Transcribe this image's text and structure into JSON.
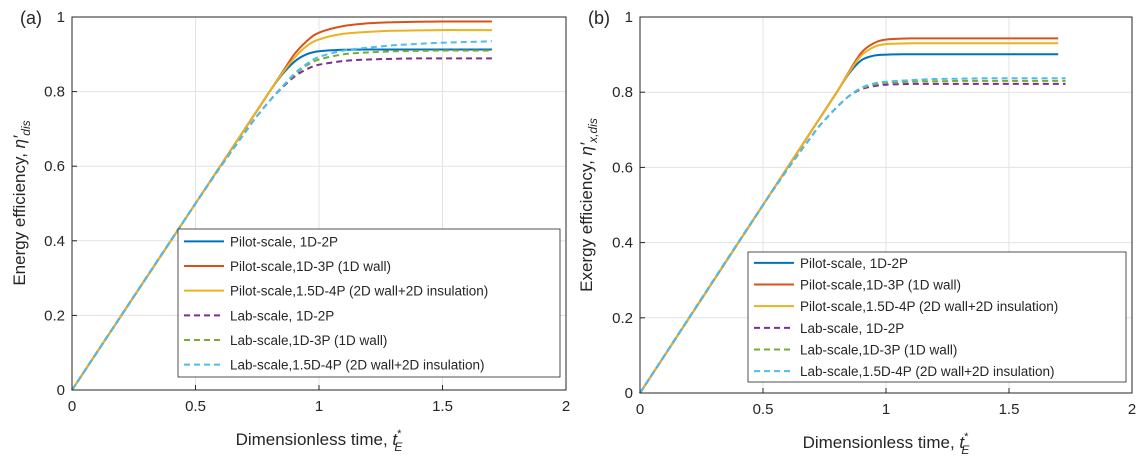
{
  "chart_data": [
    {
      "panel_label": "(a)",
      "type": "line",
      "xlabel": "Dimensionless time, ",
      "xlabel_sym": "t",
      "xlabel_sup": "*",
      "xlabel_sub": "E",
      "ylabel": "Energy efficiency, ",
      "ylabel_sym": "η′",
      "ylabel_sub": "dis",
      "xlim": [
        0,
        2
      ],
      "ylim": [
        0,
        1
      ],
      "xticks": [
        "0",
        "0.5",
        "1",
        "1.5",
        "2"
      ],
      "yticks": [
        "0",
        "0.2",
        "0.4",
        "0.6",
        "0.8",
        "1"
      ],
      "xtick_values": [
        0,
        0.5,
        1,
        1.5,
        2
      ],
      "ytick_values": [
        0,
        0.2,
        0.4,
        0.6,
        0.8,
        1
      ],
      "grid": true,
      "legend_position": "bottom-right",
      "x": [
        0,
        0.5,
        0.7,
        0.75,
        0.8,
        0.85,
        0.9,
        0.95,
        1.0,
        1.1,
        1.2,
        1.3,
        1.4,
        1.5,
        1.6,
        1.7
      ],
      "series": [
        {
          "name": "Pilot-scale, 1D-2P",
          "color": "#0072BD",
          "dash": false,
          "y": [
            0,
            0.5,
            0.7,
            0.75,
            0.8,
            0.845,
            0.88,
            0.9,
            0.908,
            0.912,
            0.913,
            0.913,
            0.913,
            0.913,
            0.913,
            0.913
          ]
        },
        {
          "name": "Pilot-scale,1D-3P (1D wall)",
          "color": "#D95319",
          "dash": false,
          "y": [
            0,
            0.5,
            0.7,
            0.75,
            0.8,
            0.85,
            0.9,
            0.935,
            0.958,
            0.976,
            0.983,
            0.986,
            0.987,
            0.988,
            0.988,
            0.988
          ]
        },
        {
          "name": "Pilot-scale,1.5D-4P (2D wall+2D insulation)",
          "color": "#EDB120",
          "dash": false,
          "y": [
            0,
            0.5,
            0.7,
            0.75,
            0.8,
            0.848,
            0.89,
            0.922,
            0.94,
            0.955,
            0.96,
            0.963,
            0.964,
            0.965,
            0.965,
            0.965
          ]
        },
        {
          "name": "Lab-scale, 1D-2P",
          "color": "#7E2F8E",
          "dash": true,
          "y": [
            0,
            0.5,
            0.69,
            0.735,
            0.775,
            0.81,
            0.84,
            0.86,
            0.872,
            0.882,
            0.886,
            0.888,
            0.889,
            0.889,
            0.889,
            0.889
          ]
        },
        {
          "name": "Lab-scale,1D-3P (1D wall)",
          "color": "#77AC30",
          "dash": true,
          "y": [
            0,
            0.5,
            0.69,
            0.735,
            0.775,
            0.812,
            0.845,
            0.87,
            0.886,
            0.9,
            0.905,
            0.908,
            0.909,
            0.91,
            0.91,
            0.91
          ]
        },
        {
          "name": "Lab-scale,1.5D-4P (2D wall+2D insulation)",
          "color": "#4DBEEE",
          "dash": true,
          "y": [
            0,
            0.5,
            0.69,
            0.735,
            0.775,
            0.812,
            0.848,
            0.874,
            0.893,
            0.91,
            0.918,
            0.924,
            0.928,
            0.931,
            0.933,
            0.935
          ]
        }
      ]
    },
    {
      "panel_label": "(b)",
      "type": "line",
      "xlabel": "Dimensionless time, ",
      "xlabel_sym": "t",
      "xlabel_sup": "*",
      "xlabel_sub": "E",
      "ylabel": "Exergy efficiency, ",
      "ylabel_sym": "η′",
      "ylabel_sub": "x,dis",
      "xlim": [
        0,
        2
      ],
      "ylim": [
        0,
        1
      ],
      "xticks": [
        "0",
        "0.5",
        "1",
        "1.5",
        "2"
      ],
      "yticks": [
        "0",
        "0.2",
        "0.4",
        "0.6",
        "0.8",
        "1"
      ],
      "xtick_values": [
        0,
        0.5,
        1,
        1.5,
        2
      ],
      "ytick_values": [
        0,
        0.2,
        0.4,
        0.6,
        0.8,
        1
      ],
      "grid": true,
      "legend_position": "bottom-right",
      "x": [
        0,
        0.5,
        0.7,
        0.75,
        0.8,
        0.85,
        0.9,
        0.95,
        1.0,
        1.1,
        1.2,
        1.3,
        1.4,
        1.5,
        1.6,
        1.7,
        1.73
      ],
      "series": [
        {
          "name": "Pilot-scale, 1D-2P",
          "color": "#0072BD",
          "dash": false,
          "y": [
            0,
            0.5,
            0.7,
            0.75,
            0.8,
            0.85,
            0.885,
            0.897,
            0.9,
            0.901,
            0.901,
            0.901,
            0.901,
            0.901,
            0.901,
            0.901,
            null
          ]
        },
        {
          "name": "Pilot-scale,1D-3P (1D wall)",
          "color": "#D95319",
          "dash": false,
          "y": [
            0,
            0.5,
            0.7,
            0.75,
            0.8,
            0.855,
            0.905,
            0.93,
            0.94,
            0.943,
            0.943,
            0.943,
            0.943,
            0.943,
            0.943,
            0.943,
            null
          ]
        },
        {
          "name": "Pilot-scale,1.5D-4P (2D wall+2D insulation)",
          "color": "#EDB120",
          "dash": false,
          "y": [
            0,
            0.5,
            0.7,
            0.75,
            0.8,
            0.853,
            0.898,
            0.92,
            0.928,
            0.93,
            0.93,
            0.93,
            0.93,
            0.93,
            0.93,
            0.93,
            null
          ]
        },
        {
          "name": "Lab-scale, 1D-2P",
          "color": "#7E2F8E",
          "dash": true,
          "y": [
            0,
            0.5,
            0.685,
            0.725,
            0.76,
            0.79,
            0.808,
            0.816,
            0.82,
            0.822,
            0.822,
            0.822,
            0.822,
            0.822,
            0.822,
            0.822,
            0.822
          ]
        },
        {
          "name": "Lab-scale,1D-3P (1D wall)",
          "color": "#77AC30",
          "dash": true,
          "y": [
            0,
            0.5,
            0.685,
            0.725,
            0.76,
            0.79,
            0.81,
            0.82,
            0.825,
            0.828,
            0.829,
            0.83,
            0.83,
            0.83,
            0.83,
            0.83,
            0.83
          ]
        },
        {
          "name": "Lab-scale,1.5D-4P (2D wall+2D insulation)",
          "color": "#4DBEEE",
          "dash": true,
          "y": [
            0,
            0.5,
            0.685,
            0.725,
            0.76,
            0.79,
            0.812,
            0.823,
            0.828,
            0.832,
            0.835,
            0.836,
            0.837,
            0.837,
            0.837,
            0.837,
            0.837
          ]
        }
      ]
    }
  ]
}
